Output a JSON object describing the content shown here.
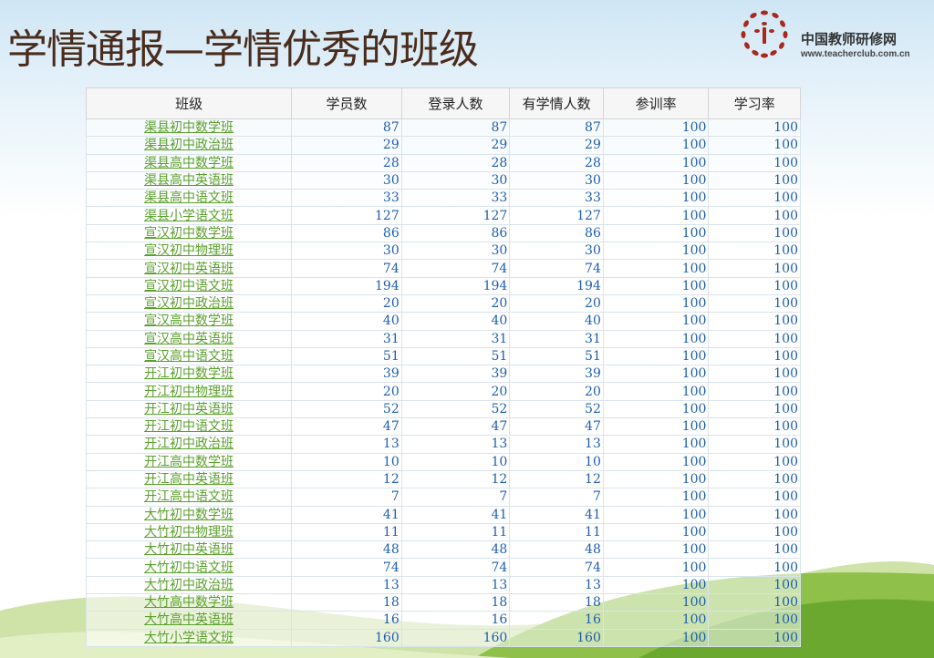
{
  "title": "学情通报—学情优秀的班级",
  "logo": {
    "name": "中国教师研修网",
    "url": "www.teacherclub.com.cn"
  },
  "colors": {
    "link_green": "#5aa02c",
    "number_blue": "#1f5fb0",
    "title_brown": "#4a2c1c",
    "logo_red": "#a8281e"
  },
  "table": {
    "headers": [
      "班级",
      "学员数",
      "登录人数",
      "有学情人数",
      "参训率",
      "学习率"
    ],
    "rows": [
      [
        "渠县初中数学班",
        "87",
        "87",
        "87",
        "100",
        "100"
      ],
      [
        "渠县初中政治班",
        "29",
        "29",
        "29",
        "100",
        "100"
      ],
      [
        "渠县高中数学班",
        "28",
        "28",
        "28",
        "100",
        "100"
      ],
      [
        "渠县高中英语班",
        "30",
        "30",
        "30",
        "100",
        "100"
      ],
      [
        "渠县高中语文班",
        "33",
        "33",
        "33",
        "100",
        "100"
      ],
      [
        "渠县小学语文班",
        "127",
        "127",
        "127",
        "100",
        "100"
      ],
      [
        "宣汉初中数学班",
        "86",
        "86",
        "86",
        "100",
        "100"
      ],
      [
        "宣汉初中物理班",
        "30",
        "30",
        "30",
        "100",
        "100"
      ],
      [
        "宣汉初中英语班",
        "74",
        "74",
        "74",
        "100",
        "100"
      ],
      [
        "宣汉初中语文班",
        "194",
        "194",
        "194",
        "100",
        "100"
      ],
      [
        "宣汉初中政治班",
        "20",
        "20",
        "20",
        "100",
        "100"
      ],
      [
        "宣汉高中数学班",
        "40",
        "40",
        "40",
        "100",
        "100"
      ],
      [
        "宣汉高中英语班",
        "31",
        "31",
        "31",
        "100",
        "100"
      ],
      [
        "宣汉高中语文班",
        "51",
        "51",
        "51",
        "100",
        "100"
      ],
      [
        "开江初中数学班",
        "39",
        "39",
        "39",
        "100",
        "100"
      ],
      [
        "开江初中物理班",
        "20",
        "20",
        "20",
        "100",
        "100"
      ],
      [
        "开江初中英语班",
        "52",
        "52",
        "52",
        "100",
        "100"
      ],
      [
        "开江初中语文班",
        "47",
        "47",
        "47",
        "100",
        "100"
      ],
      [
        "开江初中政治班",
        "13",
        "13",
        "13",
        "100",
        "100"
      ],
      [
        "开江高中数学班",
        "10",
        "10",
        "10",
        "100",
        "100"
      ],
      [
        "开江高中英语班",
        "12",
        "12",
        "12",
        "100",
        "100"
      ],
      [
        "开江高中语文班",
        "7",
        "7",
        "7",
        "100",
        "100"
      ],
      [
        "大竹初中数学班",
        "41",
        "41",
        "41",
        "100",
        "100"
      ],
      [
        "大竹初中物理班",
        "11",
        "11",
        "11",
        "100",
        "100"
      ],
      [
        "大竹初中英语班",
        "48",
        "48",
        "48",
        "100",
        "100"
      ],
      [
        "大竹初中语文班",
        "74",
        "74",
        "74",
        "100",
        "100"
      ],
      [
        "大竹初中政治班",
        "13",
        "13",
        "13",
        "100",
        "100"
      ],
      [
        "大竹高中数学班",
        "18",
        "18",
        "18",
        "100",
        "100"
      ],
      [
        "大竹高中英语班",
        "16",
        "16",
        "16",
        "100",
        "100"
      ],
      [
        "大竹小学语文班",
        "160",
        "160",
        "160",
        "100",
        "100"
      ]
    ]
  }
}
